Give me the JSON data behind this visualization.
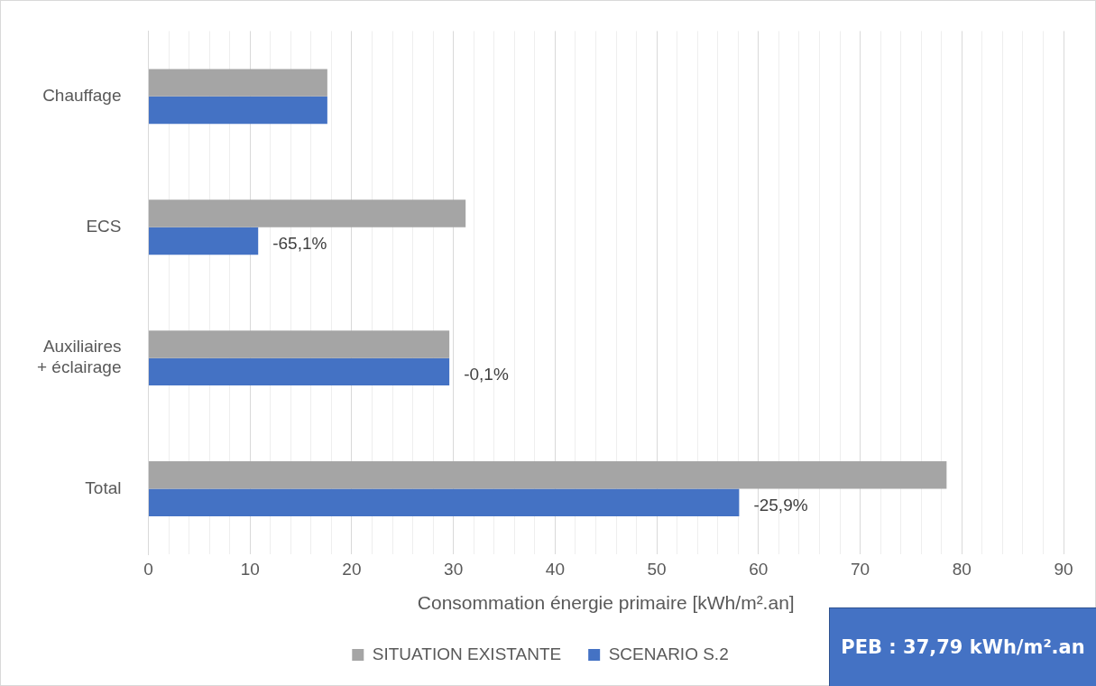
{
  "chart_data": {
    "type": "bar",
    "orientation": "horizontal",
    "xlabel": "Consommation énergie primaire [kWh/m².an]",
    "categories": [
      "Chauffage",
      "ECS",
      "Auxiliaires\n+ éclairage",
      "Total"
    ],
    "series": [
      {
        "name": "SITUATION EXISTANTE",
        "color": "#a5a5a5",
        "values": [
          17.6,
          31.2,
          29.6,
          78.5
        ]
      },
      {
        "name": "SCENARIO S.2",
        "color": "#4472c4",
        "values": [
          17.6,
          10.8,
          29.6,
          58.1
        ]
      }
    ],
    "xlim": [
      0,
      90
    ],
    "xticks": [
      0,
      {
        "value": 2,
        "label": null
      },
      {
        "value": 4,
        "label": null
      },
      {
        "value": 6,
        "label": null
      },
      {
        "value": 8,
        "label": null
      },
      10,
      {
        "value": 12,
        "label": null
      },
      {
        "value": 14,
        "label": null
      },
      {
        "value": 16,
        "label": null
      },
      {
        "value": 18,
        "label": null
      },
      20,
      {
        "value": 22,
        "label": null
      },
      {
        "value": 24,
        "label": null
      },
      {
        "value": 26,
        "label": null
      },
      {
        "value": 28,
        "label": null
      },
      30,
      {
        "value": 32,
        "label": null
      },
      {
        "value": 34,
        "label": null
      },
      {
        "value": 36,
        "label": null
      },
      {
        "value": 38,
        "label": null
      },
      40,
      {
        "value": 42,
        "label": null
      },
      {
        "value": 44,
        "label": null
      },
      {
        "value": 46,
        "label": null
      },
      {
        "value": 48,
        "label": null
      },
      50,
      {
        "value": 52,
        "label": null
      },
      {
        "value": 54,
        "label": null
      },
      {
        "value": 56,
        "label": null
      },
      {
        "value": 58,
        "label": null
      },
      60,
      {
        "value": 62,
        "label": null
      },
      {
        "value": 64,
        "label": null
      },
      {
        "value": 66,
        "label": null
      },
      {
        "value": 68,
        "label": null
      },
      70,
      {
        "value": 72,
        "label": null
      },
      {
        "value": 74,
        "label": null
      },
      {
        "value": 76,
        "label": null
      },
      {
        "value": 78,
        "label": null
      },
      80,
      {
        "value": 82,
        "label": null
      },
      {
        "value": 84,
        "label": null
      },
      {
        "value": 86,
        "label": null
      },
      {
        "value": 88,
        "label": null
      },
      90
    ],
    "grid": "x",
    "legend": "bottom",
    "annotations": [
      {
        "text": "-65,1%",
        "x": 10.8,
        "y": "ECS"
      },
      {
        "text": "-0,1%",
        "x": 29.6,
        "y": "Auxiliaires\n+ éclairage"
      },
      {
        "text": "-25,9%",
        "x": 58.1,
        "y": "Total"
      },
      "PEB : 37,79 kWh/m².an"
    ]
  }
}
